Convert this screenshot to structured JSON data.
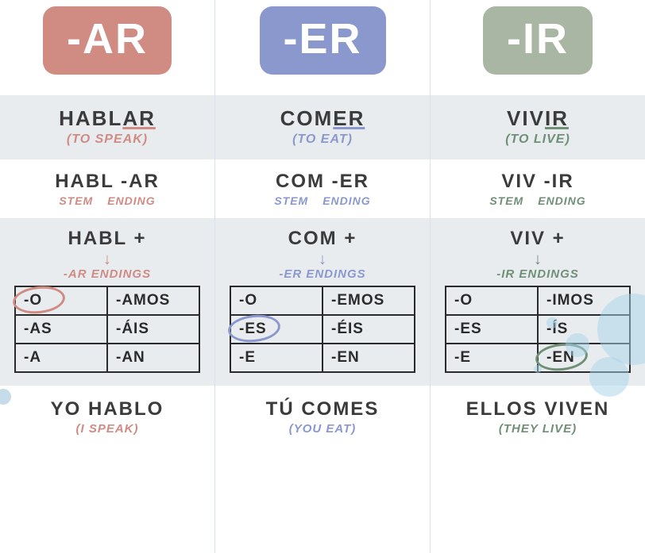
{
  "columns": [
    {
      "key": "ar",
      "accent_color": "#d08b83",
      "badge_text_color": "#ffffff",
      "header_badge": "-AR",
      "infinitive_stem": "HABL",
      "infinitive_suffix": "AR",
      "translation": "(TO SPEAK)",
      "split_stem": "HABL",
      "split_ending": "-AR",
      "split_label_stem": "STEM",
      "split_label_ending": "ENDING",
      "stem_plus": "HABL +",
      "arrow_glyph": "↓",
      "endings_label": "-AR ENDINGS",
      "endings": [
        [
          "-O",
          "-AMOS"
        ],
        [
          "-AS",
          "-ÁIS"
        ],
        [
          "-A",
          "-AN"
        ]
      ],
      "circled_cell": [
        0,
        0
      ],
      "example": "YO HABLO",
      "example_trans": "(I SPEAK)"
    },
    {
      "key": "er",
      "accent_color": "#8b98ce",
      "badge_text_color": "#ffffff",
      "header_badge": "-ER",
      "infinitive_stem": "COM",
      "infinitive_suffix": "ER",
      "translation": "(TO EAT)",
      "split_stem": "COM",
      "split_ending": "-ER",
      "split_label_stem": "STEM",
      "split_label_ending": "ENDING",
      "stem_plus": "COM +",
      "arrow_glyph": "↓",
      "endings_label": "-ER ENDINGS",
      "endings": [
        [
          "-O",
          "-EMOS"
        ],
        [
          "-ES",
          "-ÉIS"
        ],
        [
          "-E",
          "-EN"
        ]
      ],
      "circled_cell": [
        1,
        0
      ],
      "example": "TÚ COMES",
      "example_trans": "(YOU EAT)"
    },
    {
      "key": "ir",
      "accent_color": "#6f8f76",
      "badge_text_color": "#ffffff",
      "header_badge": "-IR",
      "infinitive_stem": "VIV",
      "infinitive_suffix": "IR",
      "translation": "(TO LIVE)",
      "split_stem": "VIV",
      "split_ending": "-IR",
      "split_label_stem": "STEM",
      "split_label_ending": "ENDING",
      "stem_plus": "VIV +",
      "arrow_glyph": "↓",
      "endings_label": "-IR ENDINGS",
      "endings": [
        [
          "-O",
          "-IMOS"
        ],
        [
          "-ES",
          "-ÍS"
        ],
        [
          "-E",
          "-EN"
        ]
      ],
      "circled_cell": [
        2,
        1
      ],
      "example": "ELLOS VIVEN",
      "example_trans": "(THEY LIVE)"
    }
  ],
  "ir_badge_bg": "#a8b6a3",
  "band_bg": "#e8ecef",
  "text_color": "#3b3b3b",
  "table_border_color": "#2b2b2b",
  "splatter_color": "#a6d3ea",
  "badge_font_size_pt": 40,
  "infinitive_font_size_pt": 20,
  "translation_font_size_pt": 12,
  "table_cell_font_size_pt": 14
}
